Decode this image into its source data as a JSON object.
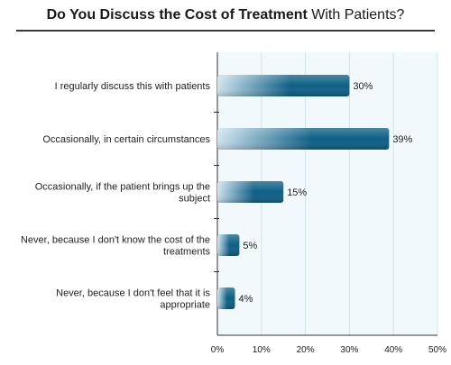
{
  "title_strong": "Do You Discuss the Cost of Treatment",
  "title_rest": " With Patients?",
  "chart_data": {
    "type": "bar",
    "orientation": "horizontal",
    "categories": [
      [
        "I regularly discuss this with patients"
      ],
      [
        "Occasionally, in certain circumstances"
      ],
      [
        "Occasionally, if the patient brings up the",
        "subject"
      ],
      [
        "Never, because I don't know the cost of the",
        "treatments"
      ],
      [
        "Never, because I don't feel that it is",
        "appropriate"
      ]
    ],
    "values": [
      30,
      39,
      15,
      5,
      4
    ],
    "value_labels": [
      "30%",
      "39%",
      "15%",
      "5%",
      "4%"
    ],
    "x_ticks": [
      "0%",
      "10%",
      "20%",
      "30%",
      "40%",
      "50%"
    ],
    "xlim": [
      0,
      50
    ],
    "bar_color": "#0e5f86",
    "bar_highlight": "#cfe3ee",
    "plot_background": "#f2f9fd",
    "grid_color": "#cfe2ec"
  }
}
